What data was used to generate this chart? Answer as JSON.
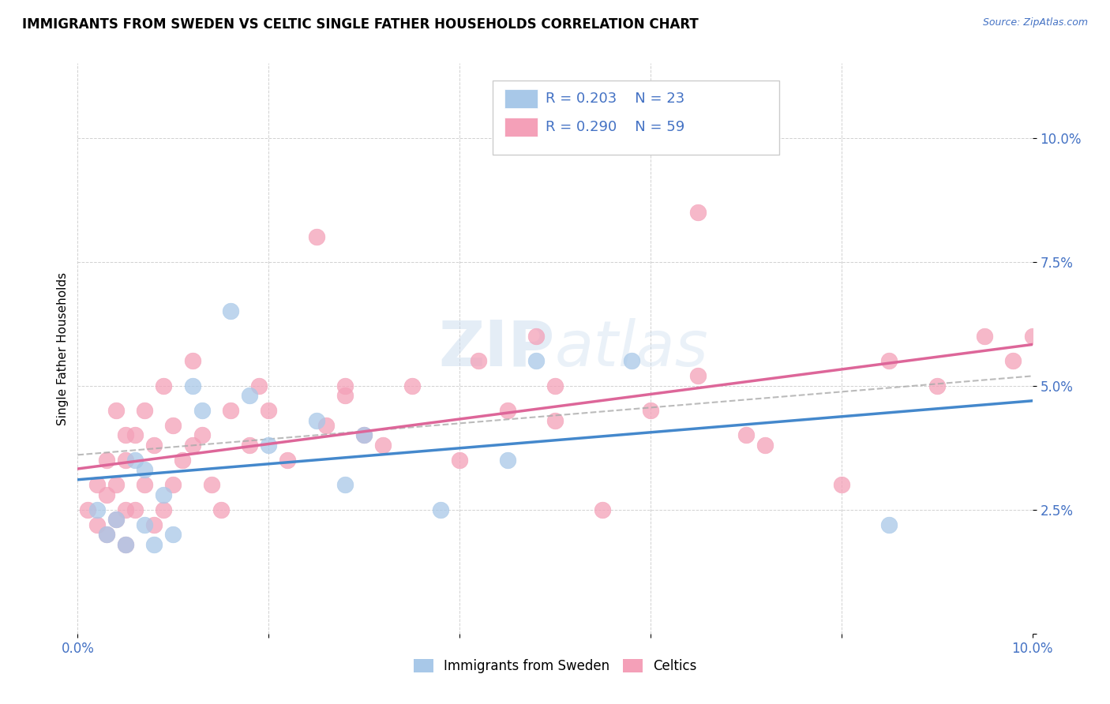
{
  "title": "IMMIGRANTS FROM SWEDEN VS CELTIC SINGLE FATHER HOUSEHOLDS CORRELATION CHART",
  "source_text": "Source: ZipAtlas.com",
  "ylabel": "Single Father Households",
  "xlim": [
    0.0,
    0.1
  ],
  "ylim": [
    0.0,
    0.115
  ],
  "xticks": [
    0.0,
    0.02,
    0.04,
    0.06,
    0.08,
    0.1
  ],
  "yticks": [
    0.0,
    0.025,
    0.05,
    0.075,
    0.1
  ],
  "xticklabels": [
    "0.0%",
    "",
    "",
    "",
    "",
    "10.0%"
  ],
  "yticklabels": [
    "",
    "2.5%",
    "5.0%",
    "7.5%",
    "10.0%"
  ],
  "legend1_label": "Immigrants from Sweden",
  "legend2_label": "Celtics",
  "r_blue": "R = 0.203",
  "n_blue": "N = 23",
  "r_pink": "R = 0.290",
  "n_pink": "N = 59",
  "blue_color": "#a8c8e8",
  "pink_color": "#f4a0b8",
  "blue_line_color": "#4488cc",
  "pink_line_color": "#dd6699",
  "dash_color": "#aaaaaa",
  "watermark": "ZIPatlas",
  "tick_color": "#4472C4",
  "blue_scatter_x": [
    0.002,
    0.003,
    0.004,
    0.005,
    0.006,
    0.007,
    0.007,
    0.008,
    0.009,
    0.01,
    0.012,
    0.013,
    0.016,
    0.018,
    0.02,
    0.025,
    0.028,
    0.03,
    0.038,
    0.045,
    0.048,
    0.058,
    0.085
  ],
  "blue_scatter_y": [
    0.025,
    0.02,
    0.023,
    0.018,
    0.035,
    0.033,
    0.022,
    0.018,
    0.028,
    0.02,
    0.05,
    0.045,
    0.065,
    0.048,
    0.038,
    0.043,
    0.03,
    0.04,
    0.025,
    0.035,
    0.055,
    0.055,
    0.022
  ],
  "pink_scatter_x": [
    0.001,
    0.002,
    0.002,
    0.003,
    0.003,
    0.003,
    0.004,
    0.004,
    0.004,
    0.005,
    0.005,
    0.005,
    0.005,
    0.006,
    0.006,
    0.007,
    0.007,
    0.008,
    0.008,
    0.009,
    0.009,
    0.01,
    0.01,
    0.011,
    0.012,
    0.012,
    0.013,
    0.014,
    0.015,
    0.016,
    0.018,
    0.019,
    0.02,
    0.022,
    0.025,
    0.026,
    0.028,
    0.028,
    0.03,
    0.032,
    0.035,
    0.04,
    0.042,
    0.045,
    0.048,
    0.05,
    0.05,
    0.055,
    0.06,
    0.065,
    0.065,
    0.07,
    0.072,
    0.08,
    0.085,
    0.09,
    0.095,
    0.098,
    0.1
  ],
  "pink_scatter_y": [
    0.025,
    0.022,
    0.03,
    0.02,
    0.028,
    0.035,
    0.023,
    0.03,
    0.045,
    0.018,
    0.025,
    0.035,
    0.04,
    0.025,
    0.04,
    0.03,
    0.045,
    0.022,
    0.038,
    0.025,
    0.05,
    0.03,
    0.042,
    0.035,
    0.055,
    0.038,
    0.04,
    0.03,
    0.025,
    0.045,
    0.038,
    0.05,
    0.045,
    0.035,
    0.08,
    0.042,
    0.048,
    0.05,
    0.04,
    0.038,
    0.05,
    0.035,
    0.055,
    0.045,
    0.06,
    0.05,
    0.043,
    0.025,
    0.045,
    0.052,
    0.085,
    0.04,
    0.038,
    0.03,
    0.055,
    0.05,
    0.06,
    0.055,
    0.06
  ]
}
